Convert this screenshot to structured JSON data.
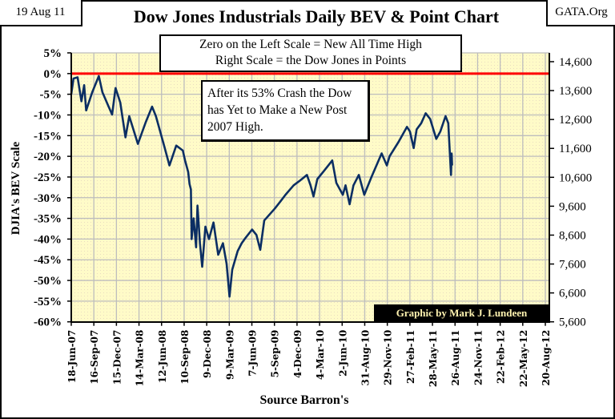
{
  "header": {
    "date": "19 Aug 11",
    "title": "Dow Jones Industrials Daily BEV & Point Chart",
    "source_site": "GATA.Org"
  },
  "annotations": {
    "scale_note_line1": "Zero on the Left Scale = New All Time High",
    "scale_note_line2": "Right Scale = the Dow Jones in Points",
    "crash_note": "After its 53% Crash the Dow has Yet to Make a New Post 2007 High.",
    "credit": "Graphic by Mark J. Lundeen"
  },
  "colors": {
    "plot_bg": "#FFFBC8",
    "line": "#0B2E63",
    "zero_line": "#FF0000",
    "grid": "#BDBDBD"
  },
  "chart_data": {
    "type": "line",
    "title": "Dow Jones Industrials Daily BEV & Point Chart",
    "xlabel": "Source Barron's",
    "ylabel": "DJIA's BEV Scale",
    "ylim": [
      -60,
      5
    ],
    "y_ticks": [
      "5%",
      "0%",
      "-5%",
      "-10%",
      "-15%",
      "-20%",
      "-25%",
      "-30%",
      "-35%",
      "-40%",
      "-45%",
      "-50%",
      "-55%",
      "-60%"
    ],
    "y_tick_values": [
      5,
      0,
      -5,
      -10,
      -15,
      -20,
      -25,
      -30,
      -35,
      -40,
      -45,
      -50,
      -55,
      -60
    ],
    "y2_ticks": [
      "14,600",
      "13,600",
      "12,600",
      "11,600",
      "10,600",
      "9,600",
      "8,600",
      "7,600",
      "6,600",
      "5,600"
    ],
    "y2_tick_values": [
      14600,
      13600,
      12600,
      11600,
      10600,
      9600,
      8600,
      7600,
      6600,
      5600
    ],
    "y2lim": [
      5600,
      14600
    ],
    "x_ticks": [
      "18-Jun-07",
      "16-Sep-07",
      "15-Dec-07",
      "14-Mar-08",
      "12-Jun-08",
      "10-Sep-08",
      "9-Dec-08",
      "9-Mar-09",
      "7-Jun-09",
      "5-Sep-09",
      "4-Dec-09",
      "4-Mar-10",
      "2-Jun-10",
      "31-Aug-10",
      "29-Nov-10",
      "27-Feb-11",
      "28-May-11",
      "26-Aug-11",
      "24-Nov-11",
      "22-Feb-12",
      "22-May-12",
      "20-Aug-12"
    ],
    "reference_line": {
      "value": 0,
      "label": "New All Time High"
    },
    "grid": true,
    "series": [
      {
        "name": "DJIA BEV",
        "x_tick_index": [
          0,
          0.1,
          0.28,
          0.45,
          0.57,
          0.66,
          0.93,
          1.22,
          1.38,
          1.63,
          1.81,
          1.96,
          2.17,
          2.4,
          2.57,
          2.95,
          3.29,
          3.58,
          3.75,
          4.11,
          4.35,
          4.65,
          4.94,
          5.04,
          5.18,
          5.24,
          5.3,
          5.33,
          5.42,
          5.53,
          5.59,
          5.7,
          5.8,
          5.94,
          6.1,
          6.3,
          6.51,
          6.72,
          6.88,
          7.01,
          7.13,
          7.37,
          7.55,
          7.72,
          8.01,
          8.2,
          8.37,
          8.55,
          9.02,
          9.25,
          9.49,
          9.85,
          10.1,
          10.44,
          10.6,
          10.73,
          10.9,
          11.2,
          11.56,
          11.74,
          12.03,
          12.15,
          12.33,
          12.5,
          12.74,
          12.98,
          13.3,
          13.75,
          13.98,
          14.1,
          14.5,
          14.87,
          15.0,
          15.17,
          15.3,
          15.5,
          15.7,
          15.9,
          16.17,
          16.35,
          16.58,
          16.7,
          16.82,
          16.85,
          16.87
        ],
        "values": [
          -5,
          -1.2,
          -0.9,
          -6.7,
          -2.8,
          -8.9,
          -4.5,
          -0.6,
          -4.5,
          -7.7,
          -9.9,
          -3.5,
          -7,
          -15.4,
          -10.3,
          -17,
          -11.9,
          -8,
          -10.3,
          -17.4,
          -22.2,
          -17.4,
          -18.6,
          -21,
          -23.8,
          -26.7,
          -28,
          -40,
          -35,
          -42,
          -31.9,
          -41,
          -46.7,
          -37,
          -40,
          -36,
          -43.8,
          -41,
          -46,
          -53.9,
          -47.4,
          -42.9,
          -41,
          -39.7,
          -37.7,
          -39,
          -42.6,
          -35.5,
          -32.6,
          -31,
          -29.3,
          -27,
          -26,
          -24.5,
          -27,
          -29.7,
          -25.5,
          -23.5,
          -21,
          -26.4,
          -29.3,
          -27,
          -31.6,
          -27,
          -24.5,
          -29.3,
          -25,
          -19.3,
          -22.2,
          -20,
          -16.5,
          -12.9,
          -14,
          -18,
          -13.5,
          -12,
          -9.6,
          -11,
          -15.8,
          -14,
          -10.3,
          -12,
          -24.5,
          -19.3,
          -22.2
        ]
      }
    ]
  }
}
